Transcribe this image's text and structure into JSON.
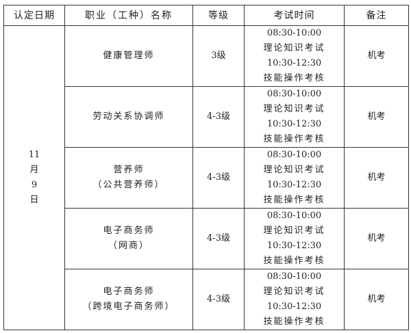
{
  "headers": [
    "认定日期",
    "职业（工种）名称",
    "等级",
    "考试时间",
    "备注"
  ],
  "date": [
    "11",
    "月",
    "9",
    "日"
  ],
  "rows": [
    {
      "name": [
        "健康管理师"
      ],
      "level": "3级",
      "times": [
        "08:30-10:00",
        "理论知识考试",
        "10:30-12:30",
        "技能操作考核"
      ],
      "note": "机考"
    },
    {
      "name": [
        "劳动关系协调师"
      ],
      "level": "4-3级",
      "times": [
        "08:30-10:00",
        "理论知识考试",
        "10:30-12:30",
        "技能操作考核"
      ],
      "note": "机考"
    },
    {
      "name": [
        "营养师",
        "（公共营养师）"
      ],
      "level": "4-3级",
      "times": [
        "08:30-10:00",
        "理论知识考试",
        "10:30-12:30",
        "技能操作考核"
      ],
      "note": "机考"
    },
    {
      "name": [
        "电子商务师",
        "（网商）"
      ],
      "level": "4-3级",
      "times": [
        "08:30-10:00",
        "理论知识考试",
        "10:30-12:30",
        "技能操作考核"
      ],
      "note": "机考"
    },
    {
      "name": [
        "电子商务师",
        "（跨境电子商务师）"
      ],
      "level": "4-3级",
      "times": [
        "08:30-10:00",
        "理论知识考试",
        "10:30-12:30",
        "技能操作考核"
      ],
      "note": "机考"
    }
  ]
}
